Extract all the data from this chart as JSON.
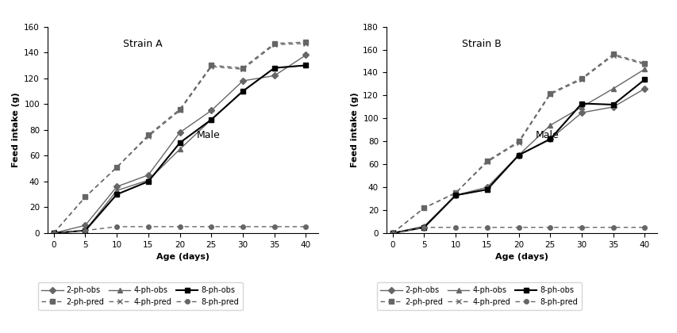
{
  "age": [
    0,
    5,
    10,
    15,
    20,
    25,
    30,
    35,
    40
  ],
  "strainA": {
    "ph2_obs": [
      0,
      6,
      36,
      45,
      78,
      95,
      118,
      122,
      138
    ],
    "ph2_pred": [
      0,
      28,
      51,
      76,
      96,
      130,
      128,
      147,
      148
    ],
    "ph4_obs": [
      0,
      2,
      33,
      41,
      65,
      88,
      110,
      128,
      130
    ],
    "ph4_pred": [
      0,
      28,
      51,
      75,
      95,
      129,
      127,
      146,
      147
    ],
    "ph8_obs": [
      0,
      2,
      30,
      40,
      70,
      88,
      110,
      128,
      130
    ],
    "ph8_pred": [
      0,
      2,
      5,
      5,
      5,
      5,
      5,
      5,
      5
    ],
    "ylabel": "Feed intake (g)",
    "title": "Strain A",
    "sublabel": "Male",
    "ylim": [
      0,
      160
    ],
    "yticks": [
      0,
      20,
      40,
      60,
      80,
      100,
      120,
      140,
      160
    ]
  },
  "strainB": {
    "ph2_obs": [
      0,
      5,
      33,
      40,
      68,
      82,
      105,
      110,
      126
    ],
    "ph2_pred": [
      0,
      22,
      35,
      63,
      80,
      122,
      135,
      156,
      148
    ],
    "ph4_obs": [
      0,
      6,
      33,
      38,
      68,
      94,
      110,
      126,
      143
    ],
    "ph4_pred": [
      0,
      22,
      35,
      62,
      79,
      121,
      134,
      155,
      147
    ],
    "ph8_obs": [
      0,
      5,
      33,
      38,
      68,
      82,
      113,
      112,
      134
    ],
    "ph8_pred": [
      0,
      5,
      5,
      5,
      5,
      5,
      5,
      5,
      5
    ],
    "ylabel": "Feed intake (g)",
    "title": "Strain B",
    "sublabel": "Male",
    "ylim": [
      0,
      180
    ],
    "yticks": [
      0,
      20,
      40,
      60,
      80,
      100,
      120,
      140,
      160,
      180
    ]
  },
  "xlabel": "Age (days)",
  "line_color": "#000000",
  "bg_color": "#ffffff"
}
